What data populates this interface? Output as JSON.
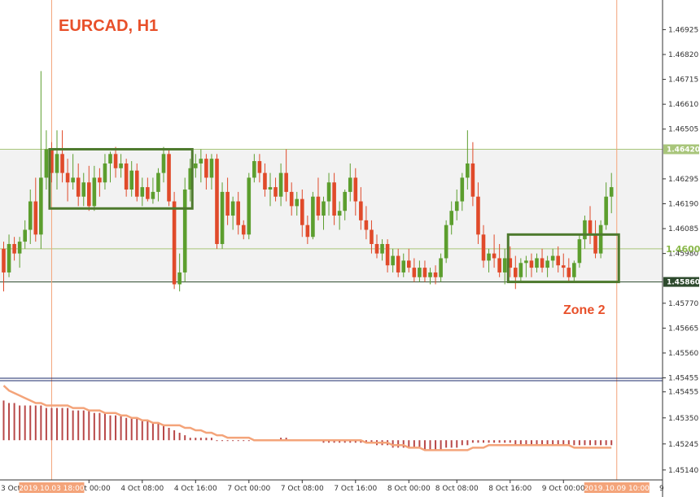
{
  "chart_data": {
    "type": "candlestick",
    "title": "EURCAD, H1",
    "colors": {
      "up": "#5c9e2e",
      "down": "#e04a2a",
      "zone_box": "#4e7a2e",
      "range_fill": "#f2f2f2",
      "line_green": "#a8c57a",
      "line_dark": "#2d4a2d",
      "accent": "#e8502a",
      "macd_bar": "#b84848",
      "signal_line": "#f4a47a",
      "separator": "#1a2a6a"
    },
    "price_axis": {
      "min": 1.4545,
      "max": 1.4705,
      "ticks": [
        "1.46925",
        "1.46820",
        "1.46715",
        "1.46610",
        "1.46505",
        "1.46295",
        "1.46190",
        "1.46085",
        "1.45980",
        "1.45770",
        "1.45665",
        "1.45560",
        "1.45455"
      ]
    },
    "levels": [
      {
        "price": 1.4642,
        "label": "1.46420",
        "style": "green-flag"
      },
      {
        "price": 1.46,
        "label": "1.4600",
        "style": "green-text"
      },
      {
        "price": 1.4586,
        "label": "1.45860",
        "style": "dark-flag"
      }
    ],
    "range_band": {
      "top": 1.4642,
      "bottom": 1.4586
    },
    "zones": [
      {
        "label": "",
        "start_index": 9,
        "end_index": 35,
        "high": 1.4642,
        "low": 1.4617
      },
      {
        "label": "Zone 2",
        "start_index": 95,
        "end_index": 115,
        "high": 1.4606,
        "low": 1.4586
      }
    ],
    "vertical_markers": [
      {
        "index": 9,
        "label": "2019.10.03 18:00"
      },
      {
        "index": 115,
        "label": "2019.10.09 10:00"
      }
    ],
    "time_ticks": [
      {
        "index": 16,
        "label": "4 Oct 00:00"
      },
      {
        "index": 26,
        "label": "4 Oct 08:00"
      },
      {
        "index": 36,
        "label": "4 Oct 16:00"
      },
      {
        "index": 46,
        "label": "7 Oct 00:00"
      },
      {
        "index": 56,
        "label": "7 Oct 08:00"
      },
      {
        "index": 66,
        "label": "7 Oct 16:00"
      },
      {
        "index": 76,
        "label": "8 Oct 00:00"
      },
      {
        "index": 85,
        "label": "8 Oct 08:00"
      },
      {
        "index": 95,
        "label": "8 Oct 16:00"
      },
      {
        "index": 105,
        "label": "9 Oct 00:00"
      }
    ],
    "time_edge_labels": {
      "left": "3 Oct 08:00",
      "right": "9"
    },
    "ohlc": [
      [
        1.46,
        1.4603,
        1.4582,
        1.459
      ],
      [
        1.459,
        1.4606,
        1.4588,
        1.4602
      ],
      [
        1.4602,
        1.4605,
        1.4595,
        1.4598
      ],
      [
        1.4598,
        1.4605,
        1.4592,
        1.4603
      ],
      [
        1.4603,
        1.4612,
        1.46,
        1.4608
      ],
      [
        1.4608,
        1.4625,
        1.4602,
        1.462
      ],
      [
        1.462,
        1.463,
        1.4603,
        1.4606
      ],
      [
        1.4606,
        1.4675,
        1.46,
        1.463
      ],
      [
        1.463,
        1.465,
        1.4625,
        1.4642
      ],
      [
        1.4642,
        1.4645,
        1.4628,
        1.4632
      ],
      [
        1.4632,
        1.465,
        1.4625,
        1.464
      ],
      [
        1.464,
        1.465,
        1.4628,
        1.4632
      ],
      [
        1.4632,
        1.4638,
        1.462,
        1.4628
      ],
      [
        1.4628,
        1.464,
        1.4625,
        1.463
      ],
      [
        1.463,
        1.4636,
        1.4618,
        1.4622
      ],
      [
        1.4622,
        1.4632,
        1.4618,
        1.4628
      ],
      [
        1.4628,
        1.4635,
        1.4616,
        1.4618
      ],
      [
        1.4618,
        1.4635,
        1.4616,
        1.463
      ],
      [
        1.463,
        1.4634,
        1.4622,
        1.4628
      ],
      [
        1.4628,
        1.464,
        1.4625,
        1.4636
      ],
      [
        1.4636,
        1.4641,
        1.4628,
        1.464
      ],
      [
        1.464,
        1.4643,
        1.463,
        1.4634
      ],
      [
        1.4634,
        1.464,
        1.463,
        1.4636
      ],
      [
        1.4636,
        1.4638,
        1.4622,
        1.4625
      ],
      [
        1.4625,
        1.4637,
        1.4622,
        1.4633
      ],
      [
        1.4633,
        1.4636,
        1.462,
        1.4622
      ],
      [
        1.4622,
        1.463,
        1.4618,
        1.4626
      ],
      [
        1.4626,
        1.463,
        1.462,
        1.4621
      ],
      [
        1.4621,
        1.463,
        1.4619,
        1.4624
      ],
      [
        1.4624,
        1.4634,
        1.462,
        1.4632
      ],
      [
        1.4632,
        1.4643,
        1.4628,
        1.464
      ],
      [
        1.464,
        1.4642,
        1.4618,
        1.462
      ],
      [
        1.462,
        1.4624,
        1.4583,
        1.4585
      ],
      [
        1.4585,
        1.4598,
        1.4582,
        1.459
      ],
      [
        1.459,
        1.463,
        1.4586,
        1.4625
      ],
      [
        1.4625,
        1.4638,
        1.462,
        1.4634
      ],
      [
        1.4634,
        1.464,
        1.463,
        1.4636
      ],
      [
        1.4636,
        1.4642,
        1.4628,
        1.4638
      ],
      [
        1.4638,
        1.464,
        1.4625,
        1.463
      ],
      [
        1.463,
        1.464,
        1.4625,
        1.4638
      ],
      [
        1.4638,
        1.464,
        1.46,
        1.4602
      ],
      [
        1.4602,
        1.4628,
        1.46,
        1.4624
      ],
      [
        1.4624,
        1.463,
        1.461,
        1.4614
      ],
      [
        1.4614,
        1.4622,
        1.4608,
        1.462
      ],
      [
        1.462,
        1.4624,
        1.4606,
        1.461
      ],
      [
        1.461,
        1.4612,
        1.4604,
        1.4606
      ],
      [
        1.4606,
        1.4632,
        1.4604,
        1.463
      ],
      [
        1.463,
        1.464,
        1.4628,
        1.4637
      ],
      [
        1.4637,
        1.464,
        1.4628,
        1.4632
      ],
      [
        1.4632,
        1.4636,
        1.4622,
        1.4625
      ],
      [
        1.4625,
        1.4632,
        1.4618,
        1.4626
      ],
      [
        1.4626,
        1.463,
        1.462,
        1.4622
      ],
      [
        1.4622,
        1.4636,
        1.4618,
        1.4632
      ],
      [
        1.4632,
        1.4642,
        1.462,
        1.4624
      ],
      [
        1.4624,
        1.4628,
        1.4614,
        1.4618
      ],
      [
        1.4618,
        1.4624,
        1.4614,
        1.4621
      ],
      [
        1.4621,
        1.4625,
        1.4605,
        1.461
      ],
      [
        1.461,
        1.4614,
        1.4602,
        1.4605
      ],
      [
        1.4605,
        1.4624,
        1.4604,
        1.4622
      ],
      [
        1.4622,
        1.463,
        1.4612,
        1.4614
      ],
      [
        1.4614,
        1.4622,
        1.4608,
        1.462
      ],
      [
        1.462,
        1.4632,
        1.4614,
        1.4628
      ],
      [
        1.4628,
        1.4632,
        1.461,
        1.4614
      ],
      [
        1.4614,
        1.462,
        1.4608,
        1.4616
      ],
      [
        1.4616,
        1.4625,
        1.4612,
        1.4624
      ],
      [
        1.4624,
        1.4636,
        1.462,
        1.463
      ],
      [
        1.463,
        1.4634,
        1.4614,
        1.462
      ],
      [
        1.462,
        1.4626,
        1.4608,
        1.4612
      ],
      [
        1.4612,
        1.4618,
        1.4604,
        1.4608
      ],
      [
        1.4608,
        1.4612,
        1.4598,
        1.4602
      ],
      [
        1.4602,
        1.4606,
        1.4596,
        1.4598
      ],
      [
        1.4598,
        1.4604,
        1.4595,
        1.4602
      ],
      [
        1.4602,
        1.4604,
        1.459,
        1.4593
      ],
      [
        1.4593,
        1.46,
        1.459,
        1.4597
      ],
      [
        1.4597,
        1.46,
        1.4588,
        1.459
      ],
      [
        1.459,
        1.4598,
        1.4588,
        1.4595
      ],
      [
        1.4595,
        1.46,
        1.459,
        1.4592
      ],
      [
        1.4592,
        1.4596,
        1.4586,
        1.4588
      ],
      [
        1.4588,
        1.4595,
        1.4586,
        1.4592
      ],
      [
        1.4592,
        1.4595,
        1.4586,
        1.4588
      ],
      [
        1.4588,
        1.4592,
        1.4585,
        1.459
      ],
      [
        1.459,
        1.4593,
        1.4585,
        1.4588
      ],
      [
        1.4588,
        1.4598,
        1.4586,
        1.4596
      ],
      [
        1.4596,
        1.4612,
        1.4594,
        1.461
      ],
      [
        1.461,
        1.462,
        1.4606,
        1.4616
      ],
      [
        1.4616,
        1.4625,
        1.4612,
        1.462
      ],
      [
        1.462,
        1.4632,
        1.4616,
        1.463
      ],
      [
        1.463,
        1.465,
        1.4625,
        1.4636
      ],
      [
        1.4636,
        1.4645,
        1.4618,
        1.4622
      ],
      [
        1.4622,
        1.4628,
        1.4602,
        1.4606
      ],
      [
        1.4606,
        1.461,
        1.4592,
        1.4595
      ],
      [
        1.4595,
        1.46,
        1.459,
        1.4598
      ],
      [
        1.4598,
        1.4606,
        1.4592,
        1.4596
      ],
      [
        1.4596,
        1.4602,
        1.4588,
        1.459
      ],
      [
        1.459,
        1.46,
        1.4585,
        1.4596
      ],
      [
        1.4596,
        1.4601,
        1.4588,
        1.4592
      ],
      [
        1.4592,
        1.4597,
        1.4583,
        1.4588
      ],
      [
        1.4588,
        1.4596,
        1.4586,
        1.4594
      ],
      [
        1.4594,
        1.4597,
        1.4588,
        1.4595
      ],
      [
        1.4595,
        1.4598,
        1.4588,
        1.4592
      ],
      [
        1.4592,
        1.4598,
        1.459,
        1.4596
      ],
      [
        1.4596,
        1.46,
        1.459,
        1.4592
      ],
      [
        1.4592,
        1.4597,
        1.4588,
        1.4595
      ],
      [
        1.4595,
        1.46,
        1.4592,
        1.4597
      ],
      [
        1.4597,
        1.4601,
        1.459,
        1.4593
      ],
      [
        1.4593,
        1.4598,
        1.4588,
        1.4592
      ],
      [
        1.4592,
        1.4596,
        1.4586,
        1.4588
      ],
      [
        1.4588,
        1.4595,
        1.4586,
        1.4594
      ],
      [
        1.4594,
        1.4606,
        1.4592,
        1.4604
      ],
      [
        1.4604,
        1.4614,
        1.46,
        1.4612
      ],
      [
        1.4612,
        1.4618,
        1.4602,
        1.4606
      ],
      [
        1.4606,
        1.4612,
        1.4596,
        1.4598
      ],
      [
        1.4598,
        1.4612,
        1.4596,
        1.461
      ],
      [
        1.461,
        1.4628,
        1.4608,
        1.4622
      ],
      [
        1.4622,
        1.4632,
        1.4615,
        1.4626
      ]
    ],
    "indicator": {
      "type": "macd",
      "ticks": [
        "1.45455",
        "1.45350",
        "1.45245",
        "1.45140"
      ],
      "min": 1.451,
      "max": 1.455,
      "zero": 1.4526,
      "histogram": [
        1.4542,
        1.4541,
        1.4541,
        1.454,
        1.454,
        1.454,
        1.454,
        1.454,
        1.4539,
        1.4539,
        1.4539,
        1.4539,
        1.4539,
        1.4538,
        1.4538,
        1.4538,
        1.4538,
        1.4537,
        1.4537,
        1.4537,
        1.4536,
        1.4536,
        1.4536,
        1.4535,
        1.4535,
        1.4535,
        1.4534,
        1.4534,
        1.4533,
        1.4533,
        1.4532,
        1.4531,
        1.453,
        1.4529,
        1.4528,
        1.4527,
        1.4527,
        1.4527,
        1.4527,
        1.4527,
        1.4526,
        1.4526,
        1.4526,
        1.4526,
        1.4526,
        1.4526,
        1.4526,
        1.4526,
        1.4526,
        1.4526,
        1.4526,
        1.4526,
        1.4527,
        1.4527,
        1.4526,
        1.4526,
        1.4526,
        1.4526,
        1.4526,
        1.4526,
        1.4525,
        1.4525,
        1.4525,
        1.4525,
        1.4525,
        1.4525,
        1.4525,
        1.4525,
        1.4525,
        1.4525,
        1.4524,
        1.4524,
        1.4524,
        1.4523,
        1.4523,
        1.4523,
        1.4523,
        1.4523,
        1.4523,
        1.4522,
        1.4522,
        1.4522,
        1.4522,
        1.4523,
        1.4523,
        1.4523,
        1.4524,
        1.4524,
        1.4525,
        1.4525,
        1.4525,
        1.4525,
        1.4525,
        1.4525,
        1.4525,
        1.4525,
        1.4524,
        1.4524,
        1.4524,
        1.4524,
        1.4524,
        1.4524,
        1.4524,
        1.4524,
        1.4524,
        1.4524,
        1.4524,
        1.4524,
        1.4524,
        1.4524,
        1.4524,
        1.4524,
        1.4524,
        1.4524,
        1.4524,
        1.4525,
        1.4525,
        1.4526
      ],
      "signal": [
        1.4548,
        1.4546,
        1.4545,
        1.4544,
        1.4543,
        1.4542,
        1.4541,
        1.4541,
        1.454,
        1.454,
        1.454,
        1.454,
        1.454,
        1.4539,
        1.4539,
        1.4539,
        1.4538,
        1.4538,
        1.4538,
        1.4537,
        1.4537,
        1.4537,
        1.4536,
        1.4536,
        1.4535,
        1.4535,
        1.4534,
        1.4534,
        1.4533,
        1.4533,
        1.4532,
        1.4532,
        1.4532,
        1.4532,
        1.4531,
        1.4531,
        1.453,
        1.453,
        1.4529,
        1.4529,
        1.4528,
        1.4528,
        1.4527,
        1.4527,
        1.4527,
        1.4527,
        1.4527,
        1.4526,
        1.4526,
        1.4526,
        1.4526,
        1.4526,
        1.4526,
        1.4526,
        1.4526,
        1.4526,
        1.4526,
        1.4526,
        1.4526,
        1.4526,
        1.4526,
        1.4526,
        1.4526,
        1.4526,
        1.4526,
        1.4526,
        1.4526,
        1.4526,
        1.4525,
        1.4525,
        1.4525,
        1.4525,
        1.4525,
        1.4524,
        1.4524,
        1.4524,
        1.4523,
        1.4523,
        1.4523,
        1.4522,
        1.4522,
        1.4522,
        1.4522,
        1.4522,
        1.4522,
        1.4522,
        1.4522,
        1.4522,
        1.4523,
        1.4523,
        1.4523,
        1.4524,
        1.4524,
        1.4524,
        1.4524,
        1.4524,
        1.4524,
        1.4524,
        1.4524,
        1.4524,
        1.4524,
        1.4524,
        1.4524,
        1.4524,
        1.4524,
        1.4524,
        1.4524,
        1.4523,
        1.4523,
        1.4523,
        1.4523,
        1.4523,
        1.4523,
        1.4523,
        1.4523,
        1.4523,
        1.4524,
        1.4524,
        1.4525
      ]
    }
  }
}
